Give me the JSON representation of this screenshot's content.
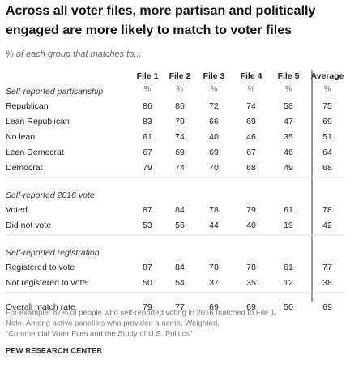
{
  "title": [
    "Across all voter files, more partisan and politically",
    "engaged are more likely to match to voter files"
  ],
  "subtitle": "% of each group that matches to...",
  "columns": [
    "File 1",
    "File 2",
    "File 3",
    "File 4",
    "File 5",
    "Average"
  ],
  "units": [
    "%",
    "%",
    "%",
    "%",
    "%",
    "%"
  ],
  "sections": [
    {
      "heading": "Self-reported partisanship",
      "rows": [
        {
          "label": "Republican",
          "values": [
            86,
            86,
            72,
            74,
            58,
            75
          ]
        },
        {
          "label": "Lean Republican",
          "values": [
            83,
            79,
            66,
            69,
            47,
            69
          ]
        },
        {
          "label": "No lean",
          "values": [
            61,
            74,
            40,
            46,
            35,
            51
          ]
        },
        {
          "label": "Lean Democrat",
          "values": [
            67,
            69,
            69,
            67,
            46,
            64
          ]
        },
        {
          "label": "Democrat",
          "values": [
            79,
            74,
            70,
            68,
            49,
            68
          ]
        }
      ]
    },
    {
      "heading": "Self-reported 2016 vote",
      "rows": [
        {
          "label": "Voted",
          "values": [
            87,
            84,
            78,
            79,
            61,
            78
          ]
        },
        {
          "label": "Did not vote",
          "values": [
            53,
            56,
            44,
            40,
            19,
            42
          ]
        }
      ]
    },
    {
      "heading": "Self-reported registration",
      "rows": [
        {
          "label": "Registered to vote",
          "values": [
            87,
            84,
            78,
            78,
            61,
            77
          ]
        },
        {
          "label": "Not registered to vote",
          "values": [
            50,
            54,
            37,
            35,
            12,
            38
          ]
        }
      ]
    }
  ],
  "total": {
    "label": "Overall match rate",
    "values": [
      79,
      77,
      69,
      69,
      50,
      69
    ]
  },
  "notes": [
    "For example: 87% of people who self-reported voting in 2016 matched to File 1.",
    "Note: Among active panelists who provided a name. Weighted.",
    "“Commercial Voter Files and the Study of U.S. Politics”"
  ],
  "source": "PEW RESEARCH CENTER"
}
